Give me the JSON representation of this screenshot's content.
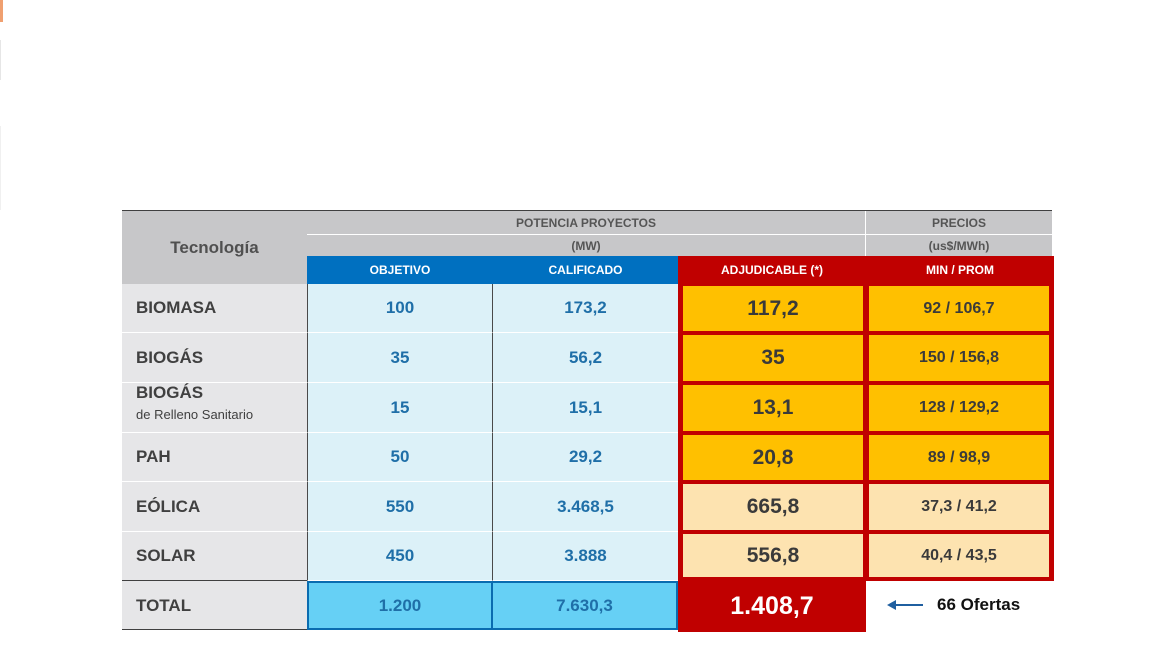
{
  "header": {
    "tecnologia": "Tecnología",
    "potencia": "POTENCIA PROYECTOS",
    "potencia_unit": "(MW)",
    "precios": "PRECIOS",
    "precios_unit": "(us$/MWh)",
    "col_objetivo": "OBJETIVO",
    "col_calificado": "CALIFICADO",
    "col_adjudicable": "ADJUDICABLE (*)",
    "col_minprom": "MIN / PROM"
  },
  "rows": [
    {
      "tech": "BIOMASA",
      "sub": "",
      "objetivo": "100",
      "calificado": "173,2",
      "adjudicable": "117,2",
      "precio": "92 / 106,7"
    },
    {
      "tech": "BIOGÁS",
      "sub": "",
      "objetivo": "35",
      "calificado": "56,2",
      "adjudicable": "35",
      "precio": "150 / 156,8"
    },
    {
      "tech": "BIOGÁS",
      "sub": "de Relleno Sanitario",
      "objetivo": "15",
      "calificado": "15,1",
      "adjudicable": "13,1",
      "precio": "128 / 129,2"
    },
    {
      "tech": "PAH",
      "sub": "",
      "objetivo": "50",
      "calificado": "29,2",
      "adjudicable": "20,8",
      "precio": "89 / 98,9"
    },
    {
      "tech": "EÓLICA",
      "sub": "",
      "objetivo": "550",
      "calificado": "3.468,5",
      "adjudicable": "665,8",
      "precio": "37,3 / 41,2"
    },
    {
      "tech": "SOLAR",
      "sub": "",
      "objetivo": "450",
      "calificado": "3.888",
      "adjudicable": "556,8",
      "precio": "40,4 / 43,5"
    }
  ],
  "total": {
    "label": "TOTAL",
    "objetivo": "1.200",
    "calificado": "7.630,3",
    "adjudicable": "1.408,7",
    "ofertas": "66 Ofertas"
  },
  "colors": {
    "blue_header": "#0070c0",
    "red": "#c00000",
    "orange": "#ffc000",
    "peach": "#fde3b0",
    "light_blue": "#dcf1f8",
    "total_blue": "#66d0f5"
  }
}
